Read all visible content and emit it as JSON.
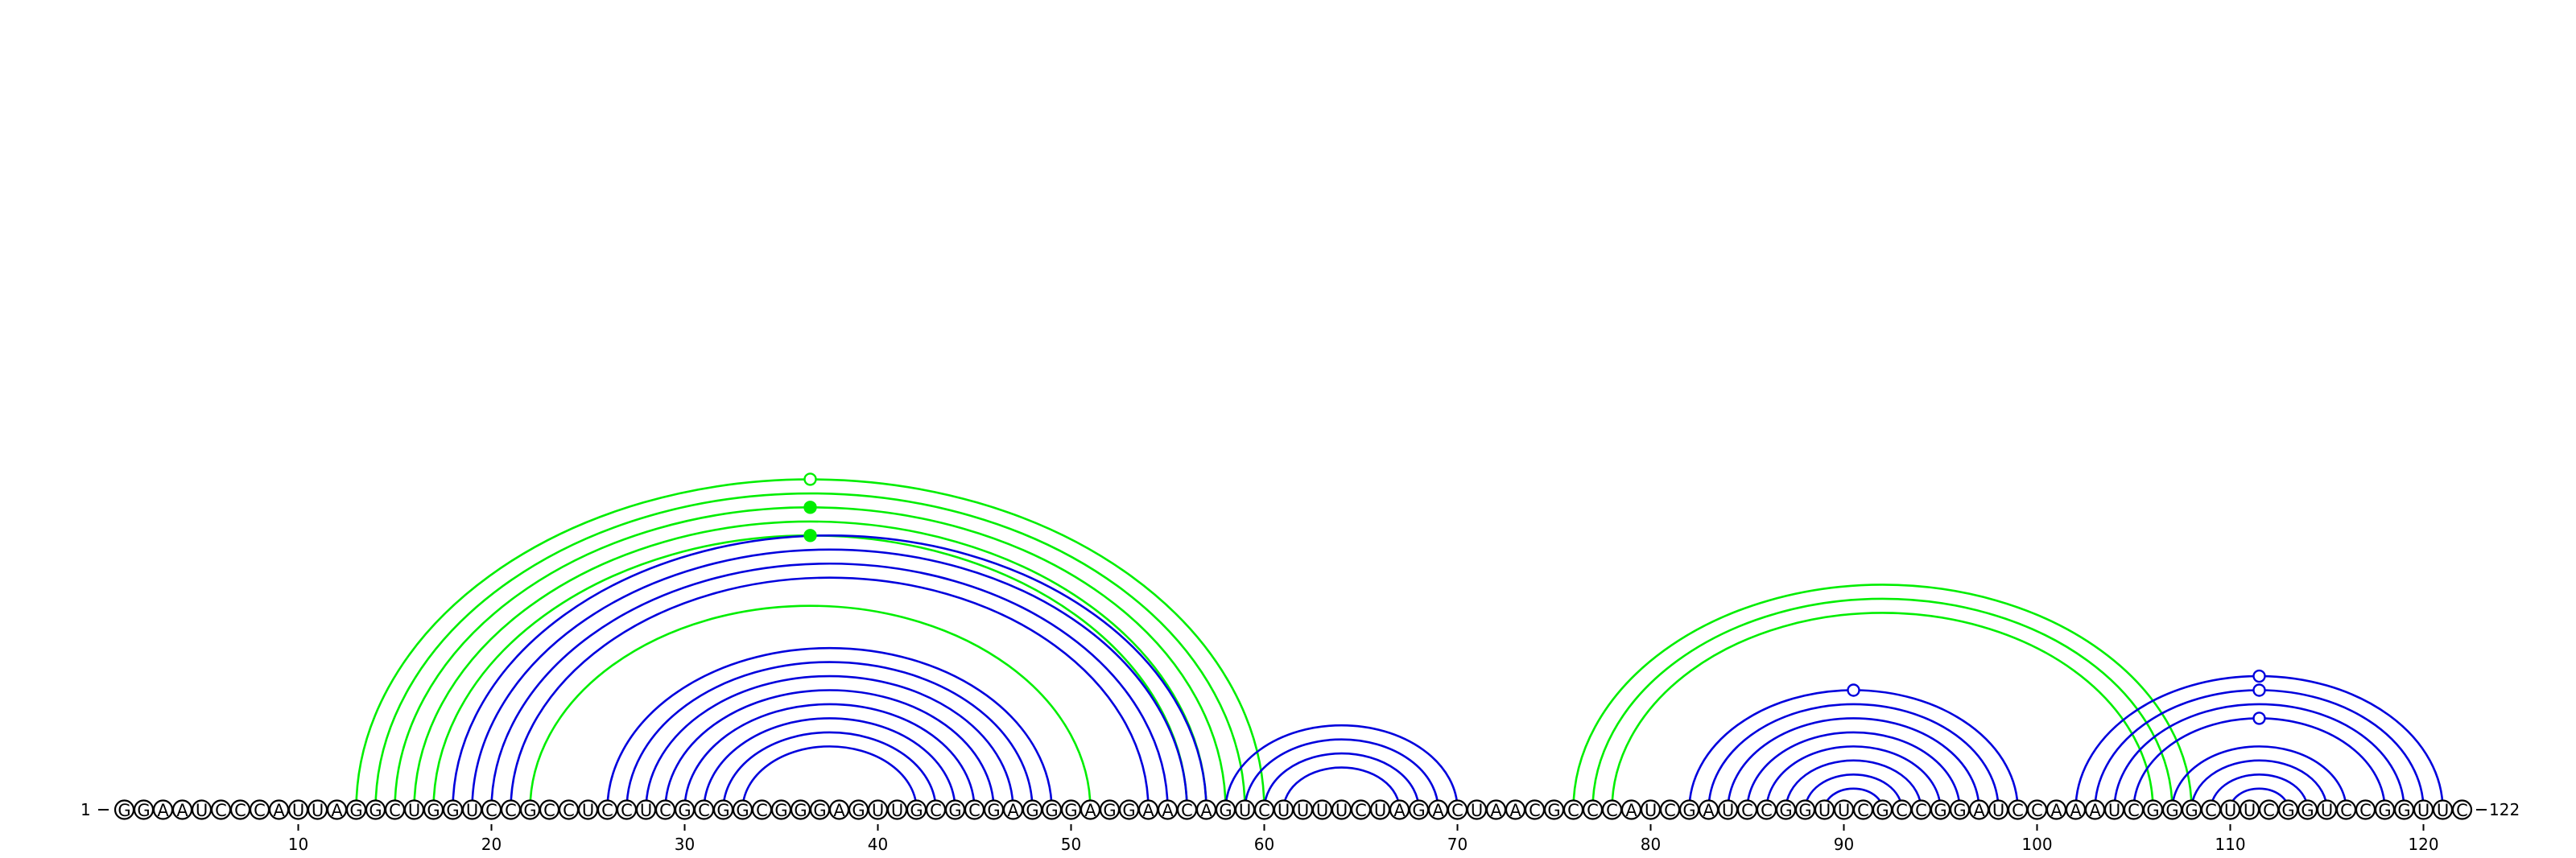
{
  "sequence": "GGAAUCCCAUUAGGCUGGUCCGCCUCCUCGCGGCGGGAGUUGCGCGAGGGAGGAACAGUCUUUUCUAGACUAACGCCCAUCGAUCCGGUUCGCCGGAUCCAAAUCGGGCUUCGGUCCGGUUC",
  "start_label": "1",
  "end_label": "122",
  "ticks": [
    10,
    20,
    30,
    40,
    50,
    60,
    70,
    80,
    90,
    100,
    110,
    120
  ],
  "colors": {
    "blue": "#0000dd",
    "green": "#00ee00",
    "black": "#000000"
  },
  "pairs_blue": [
    [
      18,
      57
    ],
    [
      19,
      56
    ],
    [
      20,
      55
    ],
    [
      21,
      54
    ],
    [
      26,
      49
    ],
    [
      27,
      48
    ],
    [
      28,
      47
    ],
    [
      29,
      46
    ],
    [
      30,
      45
    ],
    [
      31,
      44
    ],
    [
      32,
      43
    ],
    [
      33,
      42
    ],
    [
      58,
      70
    ],
    [
      59,
      69
    ],
    [
      60,
      68
    ],
    [
      61,
      67
    ],
    [
      82,
      99
    ],
    [
      83,
      98
    ],
    [
      84,
      97
    ],
    [
      85,
      96
    ],
    [
      86,
      95
    ],
    [
      87,
      94
    ],
    [
      88,
      93
    ],
    [
      89,
      92
    ],
    [
      102,
      121
    ],
    [
      103,
      120
    ],
    [
      104,
      119
    ],
    [
      105,
      118
    ],
    [
      107,
      116
    ],
    [
      108,
      115
    ],
    [
      109,
      114
    ],
    [
      110,
      113
    ]
  ],
  "pairs_green": [
    [
      13,
      60
    ],
    [
      14,
      59
    ],
    [
      15,
      58
    ],
    [
      16,
      57
    ],
    [
      17,
      56
    ],
    [
      22,
      51
    ],
    [
      76,
      108
    ],
    [
      77,
      107
    ],
    [
      78,
      106
    ]
  ],
  "markers": [
    {
      "center": 36.5,
      "level": 0,
      "color": "green",
      "filled": false
    },
    {
      "center": 36.5,
      "level": 2,
      "color": "green",
      "filled": true
    },
    {
      "center": 36.5,
      "level": 4,
      "color": "green",
      "filled": true
    },
    {
      "center": 90.5,
      "level": 0,
      "color": "blue",
      "filled": false
    },
    {
      "center": 111.5,
      "level": 0,
      "color": "blue",
      "filled": false
    },
    {
      "center": 111.5,
      "level": 1,
      "color": "blue",
      "filled": false
    },
    {
      "center": 111.5,
      "level": 3,
      "color": "blue",
      "filled": false
    }
  ]
}
